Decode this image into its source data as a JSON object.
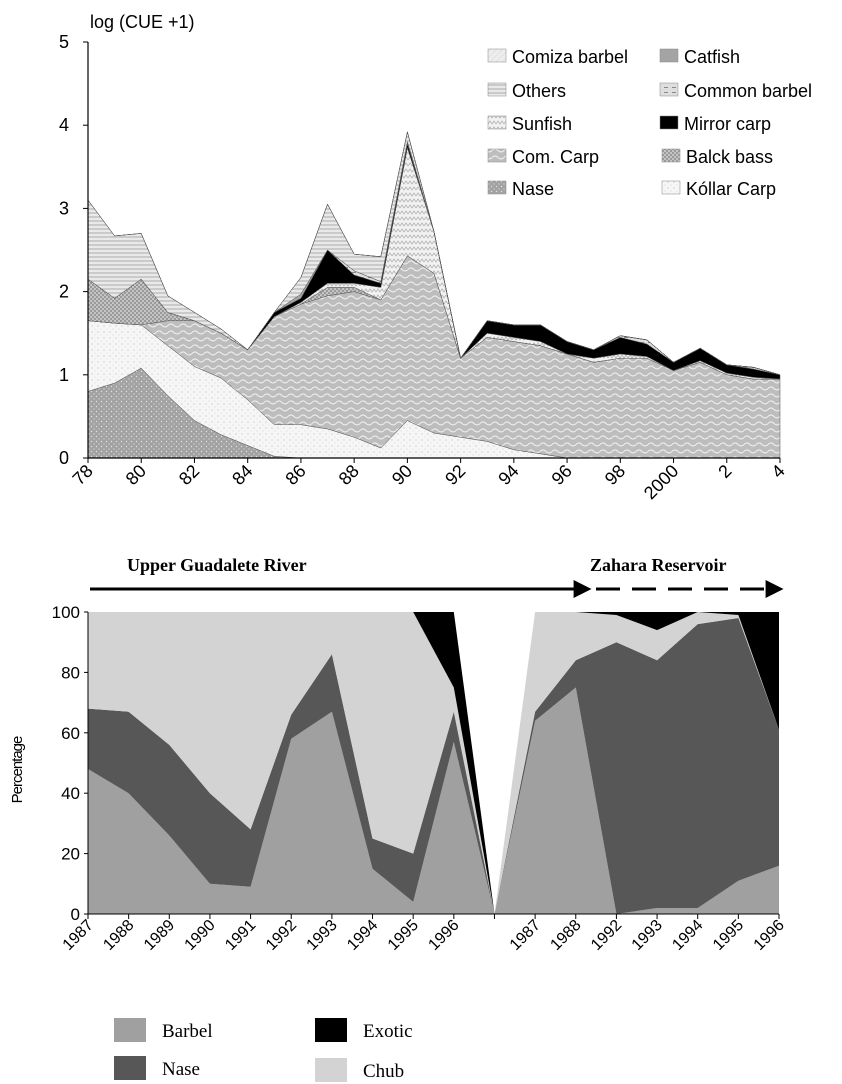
{
  "chart_data": [
    {
      "type": "area",
      "stacked": true,
      "ylabel": "log (CUE +1)",
      "ylim": [
        0,
        5
      ],
      "yticks": [
        0,
        1,
        2,
        3,
        4,
        5
      ],
      "xlim": [
        1978,
        2004
      ],
      "xtick_values": [
        1978,
        1980,
        1982,
        1984,
        1986,
        1988,
        1990,
        1992,
        1994,
        1996,
        1998,
        2000,
        2002,
        2004
      ],
      "xtick_labels": [
        "78",
        "80",
        "82",
        "84",
        "86",
        "88",
        "90",
        "92",
        "94",
        "96",
        "98",
        "2000",
        "2",
        "4"
      ],
      "legend_placement": "top-right",
      "x": [
        1978,
        1979,
        1980,
        1981,
        1982,
        1983,
        1984,
        1985,
        1986,
        1987,
        1988,
        1989,
        1990,
        1991,
        1992,
        1993,
        1994,
        1995,
        1996,
        1997,
        1998,
        1999,
        2000,
        2001,
        2002,
        2003,
        2004
      ],
      "series": [
        {
          "name": "Nase",
          "color": "#9a9a9a",
          "values": [
            0.8,
            0.9,
            1.08,
            0.75,
            0.45,
            0.28,
            0.15,
            0.02,
            0,
            0,
            0,
            0,
            0,
            0,
            0,
            0,
            0,
            0,
            0,
            0,
            0,
            0,
            0,
            0,
            0,
            0,
            0
          ]
        },
        {
          "name": "Kóllar Carp",
          "color": "#f3f3f3",
          "values": [
            0.85,
            0.72,
            0.52,
            0.6,
            0.65,
            0.68,
            0.55,
            0.38,
            0.4,
            0.35,
            0.25,
            0.12,
            0.45,
            0.3,
            0.25,
            0.2,
            0.1,
            0.05,
            0,
            0,
            0,
            0,
            0,
            0,
            0,
            0,
            0
          ]
        },
        {
          "name": "Com. Carp",
          "color": "#c2c2c2",
          "values": [
            0,
            0,
            0,
            0.3,
            0.55,
            0.54,
            0.6,
            1.3,
            1.45,
            1.6,
            1.75,
            1.78,
            1.98,
            1.92,
            0.95,
            1.25,
            1.3,
            1.3,
            1.25,
            1.15,
            1.2,
            1.2,
            1.05,
            1.15,
            1.0,
            0.95,
            0.95
          ]
        },
        {
          "name": "Balck bass",
          "color": "#adadad",
          "values": [
            0.5,
            0.3,
            0.55,
            0.1,
            0,
            0,
            0,
            0,
            0,
            0.1,
            0.05,
            0,
            0,
            0,
            0,
            0,
            0,
            0,
            0,
            0,
            0,
            0,
            0,
            0,
            0,
            0,
            0
          ]
        },
        {
          "name": "Sunfish",
          "color": "#ececec",
          "values": [
            0,
            0,
            0,
            0,
            0,
            0,
            0,
            0,
            0.02,
            0.05,
            0.05,
            0.15,
            1.3,
            0.5,
            0,
            0.05,
            0.05,
            0.05,
            0,
            0.05,
            0.05,
            0.02,
            0,
            0.02,
            0.02,
            0.02,
            0
          ]
        },
        {
          "name": "Mirror carp",
          "color": "#000000",
          "values": [
            0,
            0,
            0,
            0,
            0,
            0,
            0,
            0.05,
            0.05,
            0.4,
            0.1,
            0.05,
            0.05,
            0,
            0,
            0.15,
            0.15,
            0.2,
            0.15,
            0.1,
            0.2,
            0.15,
            0.1,
            0.15,
            0.1,
            0.1,
            0.05
          ]
        },
        {
          "name": "Common barbel",
          "color": "#bbbbbb",
          "values": [
            0,
            0,
            0,
            0,
            0,
            0,
            0,
            0,
            0,
            0,
            0.05,
            0.02,
            0.02,
            0,
            0,
            0,
            0,
            0,
            0,
            0,
            0.02,
            0.05,
            0,
            0,
            0,
            0.02,
            0
          ]
        },
        {
          "name": "Catfish",
          "color": "#a4a4a4",
          "values": [
            0,
            0,
            0,
            0,
            0,
            0,
            0,
            0,
            0.05,
            0,
            0,
            0,
            0,
            0,
            0,
            0,
            0,
            0,
            0,
            0,
            0,
            0,
            0,
            0,
            0,
            0,
            0
          ]
        },
        {
          "name": "Others",
          "color": "#d6d6d6",
          "values": [
            0.95,
            0.75,
            0.55,
            0.2,
            0.1,
            0.05,
            0,
            0,
            0.2,
            0.55,
            0.2,
            0.3,
            0.12,
            0,
            0,
            0,
            0,
            0,
            0,
            0,
            0,
            0,
            0,
            0,
            0,
            0,
            0
          ]
        },
        {
          "name": "Comiza barbel",
          "color": "#e6e6e6",
          "values": [
            0,
            0,
            0,
            0,
            0,
            0,
            0,
            0,
            0,
            0,
            0,
            0,
            0,
            0,
            0,
            0,
            0,
            0,
            0,
            0,
            0,
            0,
            0,
            0,
            0,
            0,
            0
          ]
        }
      ]
    },
    {
      "type": "area",
      "stacked": true,
      "ylabel": "Percentage",
      "ylim": [
        0,
        100
      ],
      "yticks": [
        0,
        20,
        40,
        60,
        80,
        100
      ],
      "categories": [
        "1987",
        "1988",
        "1989",
        "1990",
        "1991",
        "1992",
        "1993",
        "1994",
        "1995",
        "1996",
        "",
        "1987",
        "1988",
        "1992",
        "1993",
        "1994",
        "1995",
        "1996"
      ],
      "segments": [
        {
          "label": "Upper Guadalete River",
          "arrow": "solid",
          "from_index": 0,
          "to_index": 12
        },
        {
          "label": "Zahara Reservoir",
          "arrow": "dashed",
          "from_index": 12,
          "to_index": 17
        }
      ],
      "legend_placement": "bottom",
      "series": [
        {
          "name": "Barbel",
          "color": "#a0a0a0",
          "values": [
            48,
            40,
            26,
            10,
            9,
            58,
            67,
            15,
            4,
            57,
            0,
            64,
            75,
            0,
            2,
            2,
            11,
            16
          ]
        },
        {
          "name": "Nase",
          "color": "#575757",
          "values": [
            20,
            27,
            30,
            30,
            19,
            8,
            19,
            10,
            16,
            10,
            0,
            3,
            9,
            90,
            82,
            94,
            87,
            45
          ]
        },
        {
          "name": "Chub",
          "color": "#d3d3d3",
          "values": [
            32,
            33,
            44,
            60,
            72,
            34,
            14,
            75,
            80,
            8,
            0,
            33,
            16,
            9,
            10,
            4,
            1,
            0
          ]
        },
        {
          "name": "Exotic",
          "color": "#000000",
          "values": [
            0,
            0,
            0,
            0,
            0,
            0,
            0,
            0,
            0,
            25,
            0,
            0,
            0,
            1,
            6,
            0,
            1,
            39
          ]
        }
      ]
    }
  ],
  "top_legend_order": [
    "Comiza barbel",
    "Catfish",
    "Others",
    "Common barbel",
    "Sunfish",
    "Mirror carp",
    "Com. Carp",
    "Balck bass",
    "Nase",
    "Kóllar Carp"
  ],
  "bottom_legend_order": [
    "Barbel",
    "Exotic",
    "Nase",
    "Chub"
  ]
}
